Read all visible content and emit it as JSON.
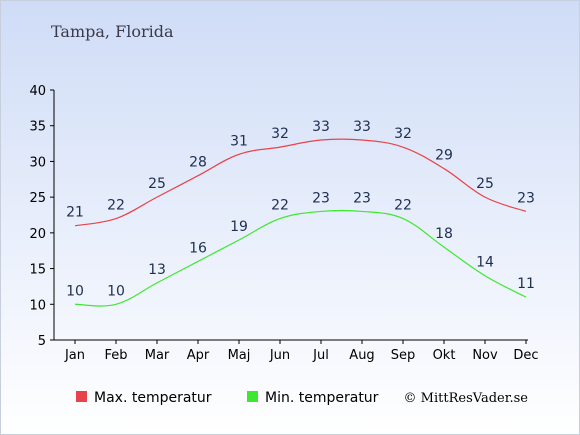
{
  "chart_data": {
    "type": "line",
    "title": "Tampa, Florida",
    "categories": [
      "Jan",
      "Feb",
      "Mar",
      "Apr",
      "Maj",
      "Jun",
      "Jul",
      "Aug",
      "Sep",
      "Okt",
      "Nov",
      "Dec"
    ],
    "series": [
      {
        "name": "Max. temperatur",
        "color": "#e8434b",
        "values": [
          21,
          22,
          25,
          28,
          31,
          32,
          33,
          33,
          32,
          29,
          25,
          23
        ]
      },
      {
        "name": "Min. temperatur",
        "color": "#3ee832",
        "values": [
          10,
          10,
          13,
          16,
          19,
          22,
          23,
          23,
          22,
          18,
          14,
          11
        ]
      }
    ],
    "ylim": [
      5,
      40
    ],
    "yticks": [
      5,
      10,
      15,
      20,
      25,
      30,
      35,
      40
    ],
    "grid": false,
    "legend_position": "bottom-left",
    "credit": "© MittResVader.se",
    "background_top": "#cfdcf7",
    "background_bottom": "#ffffff"
  }
}
